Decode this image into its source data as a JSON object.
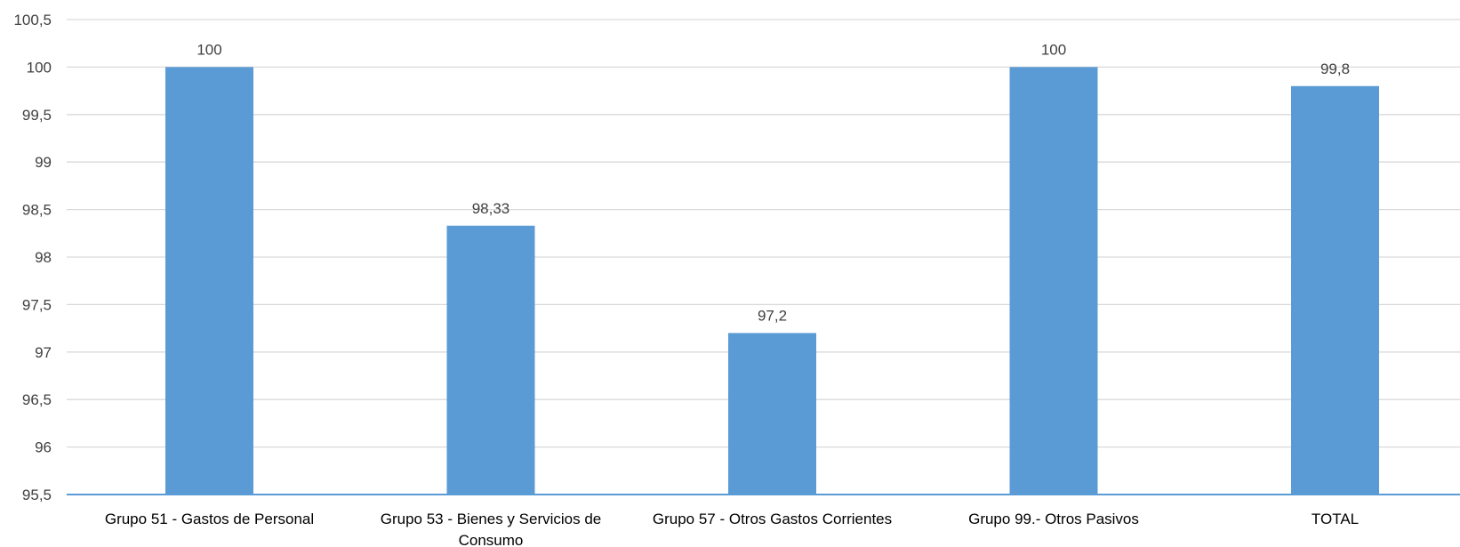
{
  "chart_data": {
    "type": "bar",
    "categories": [
      "Grupo 51 - Gastos de Personal",
      "Grupo 53 - Bienes y Servicios de Consumo",
      "Grupo 57 - Otros Gastos Corrientes",
      "Grupo 99.- Otros Pasivos",
      "TOTAL"
    ],
    "category_lines": [
      [
        "Grupo 51 - Gastos de Personal"
      ],
      [
        "Grupo 53 - Bienes y Servicios de",
        "Consumo"
      ],
      [
        "Grupo 57 - Otros Gastos Corrientes"
      ],
      [
        "Grupo 99.- Otros Pasivos"
      ],
      [
        "TOTAL"
      ]
    ],
    "values": [
      100,
      98.33,
      97.2,
      100,
      99.8
    ],
    "data_labels": [
      "100",
      "98,33",
      "97,2",
      "100",
      "99,8"
    ],
    "yticks": [
      95.5,
      96,
      96.5,
      97,
      97.5,
      98,
      98.5,
      99,
      99.5,
      100,
      100.5
    ],
    "ytick_labels": [
      "95,5",
      "96",
      "96,5",
      "97",
      "97,5",
      "98",
      "98,5",
      "99",
      "99,5",
      "100",
      "100,5"
    ],
    "ylim": [
      95.5,
      100.5
    ],
    "grid": true,
    "legend": "none",
    "title": "",
    "xlabel": "",
    "ylabel": "",
    "colors": {
      "bar": "#5b9bd5",
      "grid": "#d9d9d9",
      "axis": "#5b9bd5",
      "tick_text": "#404040",
      "category_text": "#000000"
    }
  }
}
